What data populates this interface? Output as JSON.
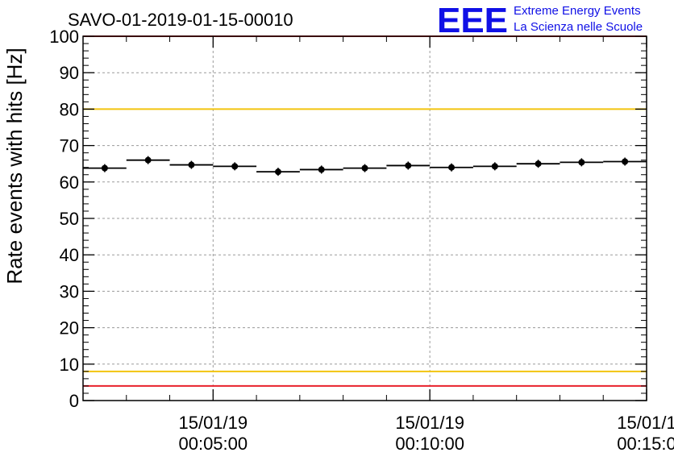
{
  "chart_data": {
    "type": "scatter",
    "title": "SAVO-01-2019-01-15-00010",
    "ylabel": "Rate events with hits [Hz]",
    "xlabel": "",
    "ylim": [
      0,
      100
    ],
    "y_ticks": [
      0,
      10,
      20,
      30,
      40,
      50,
      60,
      70,
      80,
      90,
      100
    ],
    "y_tick_labels": [
      "0",
      "10",
      "20",
      "30",
      "40",
      "50",
      "60",
      "70",
      "80",
      "90",
      "100"
    ],
    "x_range_minutes": [
      2,
      15
    ],
    "x_ticks": [
      {
        "minute": 5,
        "date": "15/01/19",
        "time": "00:05:00"
      },
      {
        "minute": 10,
        "date": "15/01/19",
        "time": "00:10:00"
      },
      {
        "minute": 15,
        "date": "15/01/1",
        "time": "00:15:0"
      }
    ],
    "grid": true,
    "series": [
      {
        "name": "rate",
        "bin_width_minutes": 1,
        "x_minutes": [
          2.5,
          3.5,
          4.5,
          5.5,
          6.5,
          7.5,
          8.5,
          9.5,
          10.5,
          11.5,
          12.5,
          13.5,
          14.5
        ],
        "values": [
          63.8,
          66.0,
          64.7,
          64.3,
          62.8,
          63.4,
          63.8,
          64.5,
          64.0,
          64.3,
          65.0,
          65.4,
          65.6
        ]
      }
    ],
    "threshold_lines": [
      {
        "name": "upper-red",
        "value": 100,
        "color": "#e8212b"
      },
      {
        "name": "upper-yellow",
        "value": 80,
        "color": "#f2c40f"
      },
      {
        "name": "lower-yellow",
        "value": 8,
        "color": "#f2c40f"
      },
      {
        "name": "lower-red",
        "value": 4,
        "color": "#e8212b"
      }
    ]
  },
  "logo": {
    "mark": "EEE",
    "line1": "Extreme Energy Events",
    "line2": "La Scienza nelle Scuole",
    "color": "#1010e6"
  }
}
